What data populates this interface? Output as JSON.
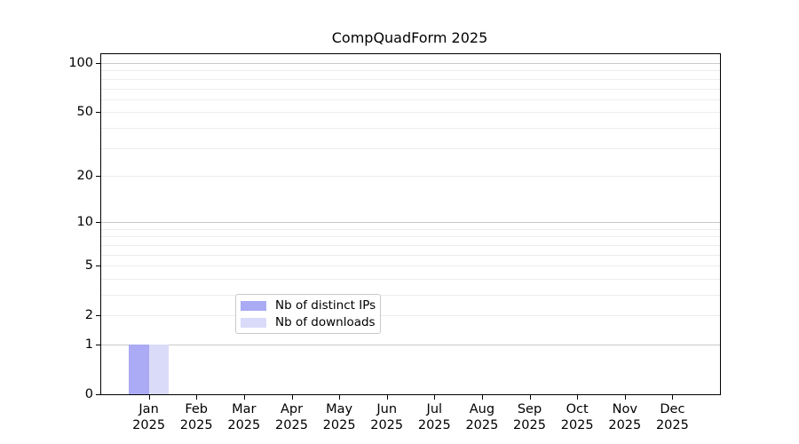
{
  "figure_title": "CompQuadForm 2025",
  "chart_data": {
    "type": "bar",
    "title": "CompQuadForm 2025",
    "xlabel": "",
    "ylabel": "",
    "x_categories_month": [
      "Jan",
      "Feb",
      "Mar",
      "Apr",
      "May",
      "Jun",
      "Jul",
      "Aug",
      "Sep",
      "Oct",
      "Nov",
      "Dec"
    ],
    "x_year_label": "2025",
    "series": [
      {
        "name": "Nb of distinct IPs",
        "color": "#aaaaf5",
        "values": [
          1,
          0,
          0,
          0,
          0,
          0,
          0,
          0,
          0,
          0,
          0,
          0
        ]
      },
      {
        "name": "Nb of downloads",
        "color": "#dadaf9",
        "values": [
          1,
          0,
          0,
          0,
          0,
          0,
          0,
          0,
          0,
          0,
          0,
          0
        ]
      }
    ],
    "y_axis": {
      "scale": "log1p",
      "tick_values": [
        0,
        1,
        2,
        5,
        10,
        20,
        50,
        100
      ],
      "tick_labels": [
        "0",
        "1",
        "2",
        "5",
        "10",
        "20",
        "50",
        "100"
      ],
      "major_gridlines": [
        1,
        10,
        100
      ],
      "minor_gridlines": [
        2,
        3,
        4,
        5,
        6,
        7,
        8,
        9,
        20,
        30,
        40,
        50,
        60,
        70,
        80,
        90
      ],
      "ylim": [
        0,
        113
      ]
    },
    "legend": {
      "position": "bottom-center",
      "entries": [
        "Nb of distinct IPs",
        "Nb of downloads"
      ]
    },
    "colors": {
      "grid_major": "#c9c9c9",
      "grid_minor": "#ededed",
      "spine": "#000000",
      "background": "#ffffff"
    },
    "grid": true
  }
}
